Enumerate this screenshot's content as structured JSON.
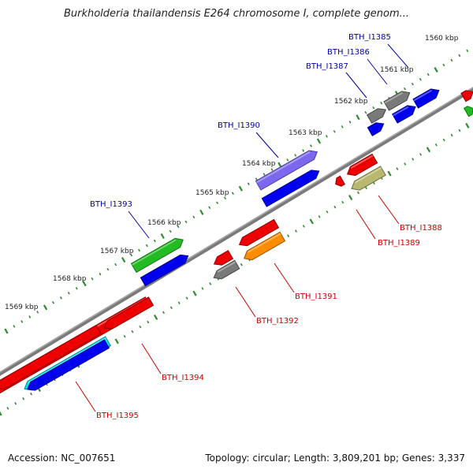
{
  "title": "Burkholderia thailandensis E264 chromosome I, complete genom...",
  "footer": {
    "accession": "Accession: NC_007651",
    "stats": "Topology: circular; Length: 3,809,201 bp; Genes: 3,337"
  },
  "colors": {
    "backbone": "#8c8c8c",
    "ticks": "#2e8b2e",
    "label_forward": "#0000aa",
    "label_reverse": "#cc0000"
  },
  "kbp_labels": [
    "1560 kbp",
    "1561 kbp",
    "1562 kbp",
    "1563 kbp",
    "1564 kbp",
    "1565 kbp",
    "1566 kbp",
    "1567 kbp",
    "1568 kbp",
    "1569 kbp"
  ],
  "genes": [
    {
      "label": "BTH_I1385",
      "color": "#0000ee",
      "strand": "+"
    },
    {
      "label": "BTH_I1386",
      "color": "#0000ee",
      "strand": "+"
    },
    {
      "label": "BTH_I1387",
      "color": "#7a7a7a",
      "strand": "+"
    },
    {
      "label": "BTH_I1388",
      "color": "#b8b870",
      "strand": "-"
    },
    {
      "label": "BTH_I1389",
      "color": "#ee0000",
      "strand": "-"
    },
    {
      "label": "BTH_I1390",
      "color": "#7b68ee",
      "strand": "+"
    },
    {
      "label": "BTH_I1391",
      "color": "#ff8c00",
      "strand": "-"
    },
    {
      "label": "BTH_I1392",
      "color": "#7a7a7a",
      "strand": "-"
    },
    {
      "label": "BTH_I1393",
      "color": "#22bb22",
      "strand": "+"
    },
    {
      "label": "BTH_I1394",
      "color": "#ee0000",
      "strand": "-"
    },
    {
      "label": "BTH_I1395",
      "color": "#00e5ee",
      "strand": "-"
    }
  ]
}
